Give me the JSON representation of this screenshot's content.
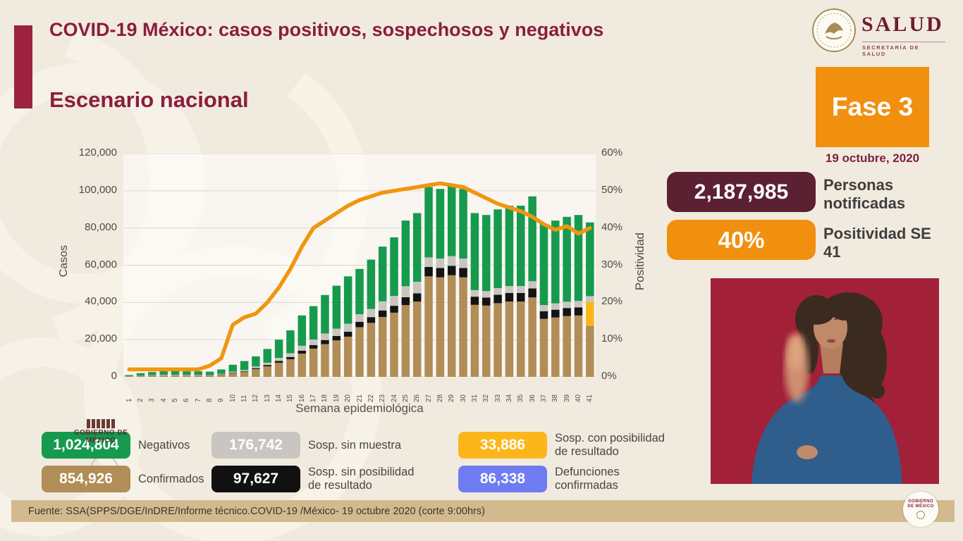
{
  "slide": {
    "title": "COVID-19 México: casos positivos, sospechosos y negativos",
    "section_title": "Escenario nacional",
    "phase_label": "Fase 3",
    "date": "19 octubre, 2020",
    "footer_source": "Fuente: SSA(SPPS/DGE/InDRE/Informe técnico.COVID-19 /México- 19 octubre 2020 (corte 9:00hrs)",
    "watermark": "GOBIERNO DE MÉXICO"
  },
  "logo": {
    "wordmark": "SALUD",
    "subtitle": "SECRETARÍA DE SALUD"
  },
  "stats": [
    {
      "value": "2,187,985",
      "label": "Personas notificadas",
      "box_color": "#5c2033"
    },
    {
      "value": "40%",
      "label": "Positividad SE 41",
      "box_color": "#f18f0e"
    }
  ],
  "legend": [
    {
      "value": "1,024,804",
      "label": "Negativos",
      "color": "#169a4e"
    },
    {
      "value": "176,742",
      "label": "Sosp. sin muestra",
      "color": "#c9c6c1"
    },
    {
      "value": "33,886",
      "label": "Sosp. con posibilidad de resultado",
      "color": "#fcb61a"
    },
    {
      "value": "854,926",
      "label": "Confirmados",
      "color": "#b18d57"
    },
    {
      "value": "97,627",
      "label": "Sosp. sin posibilidad de resultado",
      "color": "#111111"
    },
    {
      "value": "86,338",
      "label": "Defunciones confirmadas",
      "color": "#6f7bf1"
    }
  ],
  "chart_data": {
    "type": "bar",
    "subtype": "stacked-bars-with-line-overlay",
    "title": "Escenario nacional",
    "xlabel": "Semana epidemiológica",
    "ylabel_left": "Casos",
    "ylabel_right": "Positividad",
    "ylim_left": [
      0,
      120000
    ],
    "ylim_right": [
      0,
      60
    ],
    "yticks_left": [
      "0",
      "20,000",
      "40,000",
      "60,000",
      "80,000",
      "100,000",
      "120,000"
    ],
    "yticks_right": [
      "0%",
      "10%",
      "20%",
      "30%",
      "40%",
      "50%",
      "60%"
    ],
    "grid": true,
    "categories": [
      "1",
      "2",
      "3",
      "4",
      "5",
      "6",
      "7",
      "8",
      "9",
      "10",
      "11",
      "12",
      "13",
      "14",
      "15",
      "16",
      "17",
      "18",
      "19",
      "20",
      "21",
      "22",
      "23",
      "24",
      "25",
      "26",
      "27",
      "28",
      "29",
      "30",
      "31",
      "32",
      "33",
      "34",
      "35",
      "36",
      "37",
      "38",
      "39",
      "40",
      "41"
    ],
    "series": [
      {
        "name": "Confirmados",
        "color": "#b18d57",
        "values": [
          300,
          500,
          700,
          800,
          800,
          800,
          800,
          700,
          1200,
          2000,
          2600,
          4200,
          5700,
          7600,
          9500,
          12500,
          15200,
          17600,
          19600,
          21600,
          26700,
          29000,
          32200,
          34500,
          38600,
          40500,
          54000,
          53500,
          54600,
          53500,
          38700,
          38300,
          39600,
          40500,
          40500,
          42700,
          31200,
          31900,
          32700,
          33000,
          27400
        ]
      },
      {
        "name": "Sosp. sin posibilidad de resultado",
        "color": "#141414",
        "values": [
          50,
          50,
          50,
          50,
          50,
          50,
          50,
          50,
          150,
          250,
          350,
          500,
          700,
          1000,
          1200,
          1600,
          1900,
          2200,
          2400,
          2700,
          2900,
          3100,
          3500,
          3700,
          4200,
          4400,
          5100,
          5000,
          5100,
          5000,
          4400,
          4300,
          4500,
          4600,
          4600,
          4800,
          4100,
          4200,
          4300,
          4300,
          0
        ]
      },
      {
        "name": "Sosp. con posibilidad de resultado",
        "color": "#fcb61a",
        "values": [
          0,
          0,
          0,
          0,
          0,
          0,
          0,
          0,
          0,
          0,
          0,
          0,
          0,
          0,
          0,
          0,
          0,
          0,
          0,
          0,
          0,
          0,
          0,
          0,
          0,
          0,
          0,
          0,
          0,
          0,
          0,
          0,
          0,
          0,
          0,
          0,
          0,
          0,
          0,
          0,
          13000
        ]
      },
      {
        "name": "Sosp. sin muestra",
        "color": "#c9c6c1",
        "values": [
          100,
          150,
          200,
          250,
          250,
          200,
          200,
          200,
          300,
          500,
          700,
          900,
          1200,
          1600,
          2000,
          2600,
          3000,
          3500,
          3900,
          4300,
          4100,
          4400,
          4900,
          5300,
          5900,
          6200,
          5100,
          5100,
          5200,
          5100,
          3500,
          3500,
          3600,
          3700,
          3700,
          3900,
          3300,
          3400,
          3400,
          3500,
          3000
        ]
      },
      {
        "name": "Negativos",
        "color": "#169a4e",
        "values": [
          550,
          1300,
          1650,
          2100,
          2100,
          1950,
          1950,
          1850,
          2350,
          3750,
          4850,
          5400,
          7400,
          9800,
          12300,
          16300,
          17900,
          20700,
          23100,
          25400,
          24300,
          26500,
          29400,
          31500,
          35300,
          36900,
          37800,
          37400,
          38100,
          37400,
          41400,
          40900,
          42300,
          43200,
          43200,
          45600,
          43400,
          44500,
          45600,
          46200,
          39600
        ]
      }
    ],
    "line_series": {
      "name": "Positividad",
      "color": "#f0960f",
      "axis": "right",
      "values": [
        2,
        2,
        2,
        2,
        2,
        2,
        2,
        3,
        5,
        14,
        16,
        17,
        20,
        24,
        29,
        35,
        40,
        42,
        44,
        46,
        47.5,
        48.5,
        49.5,
        50,
        50.5,
        51,
        51.5,
        52,
        51.5,
        51,
        49.5,
        48,
        46.5,
        45.5,
        44.5,
        43,
        41,
        39.5,
        40.5,
        38.5,
        40
      ]
    },
    "legend_position": "bottom"
  }
}
